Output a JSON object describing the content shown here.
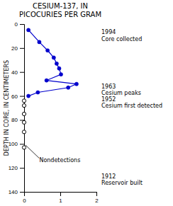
{
  "chart_data": {
    "type": "line",
    "title": "CESIUM-137, IN\nPICOCURIES PER GRAM",
    "ylabel": "DEPTH IN CORE, IN CENTIMETERS",
    "xlim": [
      0,
      2
    ],
    "ylim": [
      140,
      0
    ],
    "xticks": [
      0,
      1,
      2
    ],
    "yticks": [
      0,
      20,
      40,
      60,
      80,
      100,
      120,
      140
    ],
    "grid": false,
    "series": [
      {
        "type": "line",
        "color": "#0000cc",
        "marker": "circle",
        "line_style": "solid",
        "x": [
          0.12,
          0.42,
          0.65,
          0.82,
          0.9,
          0.97,
          1.02,
          0.62,
          1.45,
          1.22,
          0.38,
          0.12
        ],
        "values": [
          5,
          15,
          22,
          28,
          33,
          37,
          42,
          47,
          50,
          53,
          57,
          60
        ]
      },
      {
        "type": "scatter",
        "color": "#000000",
        "marker": "open-circle",
        "x": [
          0.0,
          0.0,
          0.0,
          0.0,
          0.0,
          0.0
        ],
        "values": [
          64,
          68,
          75,
          82,
          90,
          103
        ]
      }
    ],
    "annotations": [
      {
        "text": "1994\nCore collected",
        "y": 5
      },
      {
        "text": "1963\nCesium peaks\n1952\nCesium first detected",
        "y": 50
      },
      {
        "text": "1912\nReservoir built",
        "y": 125
      },
      {
        "text": "Nondetections",
        "x": 0.42,
        "y": 112,
        "arrow_x": 0.04,
        "arrow_y": 101
      }
    ]
  }
}
